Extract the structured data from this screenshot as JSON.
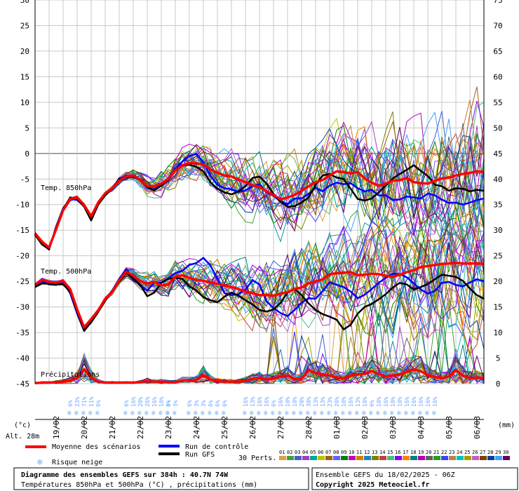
{
  "chart_data": {
    "type": "line",
    "title": "Diagramme des ensembles GEFS sur 384h : 40.7N 74W",
    "subtitle": "Températures 850hPa et 500hPa (°C) , précipitations (mm)",
    "run_info": "Ensemble GEFS du 18/02/2025 - 06Z",
    "copyright": "Copyright 2025 Meteociel.fr",
    "altitude": "Alt. 28m",
    "ylabel_left": "(°c)",
    "ylabel_right": "(mm)",
    "ylim_left": [
      -45,
      30
    ],
    "ylim_right": [
      0,
      75
    ],
    "left_ticks": [
      "30",
      "25",
      "20",
      "15",
      "10",
      "5",
      "0",
      "-5",
      "-10",
      "-15",
      "-20",
      "-25",
      "-30",
      "-35",
      "-40",
      "-45"
    ],
    "right_ticks": [
      "75",
      "70",
      "65",
      "60",
      "55",
      "50",
      "45",
      "40",
      "35",
      "30",
      "25",
      "20",
      "15",
      "10",
      "5",
      "0"
    ],
    "x_labels": [
      "19/02",
      "20/02",
      "21/02",
      "22/02",
      "23/02",
      "24/02",
      "25/02",
      "26/02",
      "27/02",
      "28/02",
      "01/03",
      "02/03",
      "03/03",
      "04/03",
      "05/03",
      "06/03"
    ],
    "section_labels": {
      "t850": "Temp. 850hPa",
      "t500": "Temp. 500hPa",
      "precip": "Précipitations"
    },
    "x_hours": [
      0,
      6,
      12,
      18,
      24,
      30,
      36,
      42,
      48,
      54,
      60,
      66,
      72,
      78,
      84,
      90,
      96,
      102,
      108,
      114,
      120,
      126,
      132,
      138,
      144,
      150,
      156,
      162,
      168,
      174,
      180,
      186,
      192,
      198,
      204,
      210,
      216,
      222,
      228,
      234,
      240,
      246,
      252,
      258,
      264,
      270,
      276,
      282,
      288,
      294,
      300,
      306,
      312,
      318,
      324,
      330,
      336,
      342,
      348,
      354,
      360,
      366,
      372,
      378,
      384
    ],
    "series": [
      {
        "name": "Moyenne des scénarios",
        "group": "t850",
        "color": "#ff0000",
        "values": [
          -15.6,
          -17.3,
          -18.4,
          -14.8,
          -11.1,
          -8.9,
          -8.6,
          -10.1,
          -12.3,
          -9.6,
          -7.8,
          -6.9,
          -5.3,
          -4.5,
          -4.3,
          -5.1,
          -6.4,
          -6.4,
          -5.9,
          -5.0,
          -3.3,
          -2.3,
          -1.9,
          -1.9,
          -2.2,
          -3.1,
          -3.8,
          -4.3,
          -4.5,
          -5.1,
          -5.6,
          -6.2,
          -6.5,
          -7.4,
          -8.1,
          -9.0,
          -8.6,
          -8.1,
          -7.3,
          -6.4,
          -5.6,
          -5.2,
          -4.3,
          -3.5,
          -3.6,
          -3.9,
          -3.6,
          -4.9,
          -5.7,
          -6.3,
          -5.9,
          -5.3,
          -5.2,
          -4.8,
          -5.6,
          -5.8,
          -5.9,
          -5.3,
          -4.9,
          -4.7,
          -4.3,
          -4.0,
          -3.8,
          -3.5,
          -3.6
        ]
      },
      {
        "name": "Run de contrôle",
        "group": "t850",
        "color": "#0000ff",
        "values": [
          -15.8,
          -17.7,
          -18.8,
          -14.3,
          -10.7,
          -8.9,
          -9.1,
          -10.3,
          -12.7,
          -9.9,
          -8.1,
          -6.8,
          -5.0,
          -4.3,
          -4.6,
          -5.2,
          -6.7,
          -7.1,
          -6.1,
          -5.2,
          -3.0,
          -1.6,
          -0.5,
          -0.1,
          -1.8,
          -4.4,
          -6.1,
          -6.8,
          -7.0,
          -7.5,
          -7.2,
          -6.4,
          -6.0,
          -7.6,
          -8.3,
          -9.4,
          -10.0,
          -8.8,
          -8.8,
          -7.9,
          -6.7,
          -7.4,
          -6.3,
          -5.7,
          -6.0,
          -5.8,
          -6.8,
          -7.4,
          -7.1,
          -8.2,
          -8.2,
          -9.1,
          -9.0,
          -8.4,
          -8.6,
          -8.8,
          -7.8,
          -8.2,
          -9.0,
          -9.7,
          -9.6,
          -10.0,
          -9.6,
          -9.1,
          -8.8
        ]
      },
      {
        "name": "Run GFS",
        "group": "t850",
        "color": "#000000",
        "values": [
          -15.9,
          -17.8,
          -18.7,
          -14.4,
          -10.9,
          -8.6,
          -8.9,
          -10.4,
          -13.1,
          -10.0,
          -8.2,
          -6.9,
          -4.9,
          -4.7,
          -4.4,
          -5.2,
          -6.6,
          -7.2,
          -6.3,
          -5.1,
          -3.4,
          -2.4,
          -2.2,
          -2.6,
          -3.5,
          -5.6,
          -6.9,
          -7.6,
          -8.0,
          -7.4,
          -6.4,
          -4.8,
          -4.5,
          -5.9,
          -7.9,
          -9.4,
          -10.4,
          -10.3,
          -9.6,
          -8.6,
          -6.1,
          -4.3,
          -4.0,
          -4.7,
          -5.0,
          -6.9,
          -8.9,
          -9.2,
          -8.8,
          -7.6,
          -6.3,
          -4.9,
          -4.0,
          -3.2,
          -2.3,
          -3.4,
          -4.4,
          -6.1,
          -6.4,
          -7.3,
          -6.8,
          -6.9,
          -7.4,
          -7.1,
          -7.3
        ]
      },
      {
        "name": "Moyenne des scénarios",
        "group": "t500",
        "color": "#ff0000",
        "values": [
          -25.7,
          -24.7,
          -25.1,
          -25.3,
          -24.9,
          -26.5,
          -30.5,
          -34.0,
          -32.4,
          -30.7,
          -28.4,
          -27.1,
          -24.8,
          -23.1,
          -23.9,
          -25.0,
          -25.4,
          -25.1,
          -25.8,
          -25.6,
          -24.1,
          -23.8,
          -24.3,
          -24.7,
          -24.9,
          -25.2,
          -25.5,
          -25.8,
          -26.1,
          -26.5,
          -27.0,
          -27.3,
          -27.7,
          -27.7,
          -27.8,
          -27.4,
          -27.1,
          -26.5,
          -26.2,
          -25.4,
          -25.0,
          -24.6,
          -23.6,
          -23.4,
          -23.3,
          -23.2,
          -23.8,
          -23.7,
          -23.5,
          -23.6,
          -23.9,
          -24.1,
          -23.7,
          -23.2,
          -22.8,
          -22.2,
          -22.0,
          -21.8,
          -21.6,
          -21.5,
          -21.4,
          -21.5,
          -21.5,
          -21.5,
          -21.6
        ]
      },
      {
        "name": "Run de contrôle",
        "group": "t500",
        "color": "#0000ff",
        "values": [
          -25.9,
          -25.0,
          -25.6,
          -25.7,
          -25.2,
          -27.3,
          -31.3,
          -34.7,
          -32.9,
          -30.8,
          -28.6,
          -26.8,
          -24.5,
          -22.6,
          -24.2,
          -25.9,
          -26.8,
          -25.2,
          -25.3,
          -24.4,
          -23.4,
          -22.9,
          -21.8,
          -21.4,
          -20.4,
          -21.9,
          -24.5,
          -27.3,
          -27.7,
          -27.5,
          -26.6,
          -24.8,
          -25.6,
          -28.9,
          -30.2,
          -31.2,
          -31.8,
          -30.6,
          -29.2,
          -28.3,
          -28.4,
          -26.9,
          -25.2,
          -25.7,
          -26.1,
          -27.0,
          -28.3,
          -27.6,
          -26.5,
          -25.3,
          -24.3,
          -23.5,
          -23.6,
          -24.2,
          -25.4,
          -26.6,
          -27.4,
          -26.9,
          -25.3,
          -25.1,
          -25.7,
          -26.0,
          -25.2,
          -24.6,
          -25.0
        ]
      },
      {
        "name": "Run GFS",
        "group": "t500",
        "color": "#000000",
        "values": [
          -26.1,
          -25.4,
          -25.5,
          -25.6,
          -25.6,
          -27.0,
          -31.0,
          -34.6,
          -33.0,
          -31.0,
          -28.8,
          -26.9,
          -25.1,
          -23.3,
          -24.5,
          -25.7,
          -27.9,
          -27.2,
          -25.3,
          -24.5,
          -24.3,
          -24.5,
          -26.0,
          -26.8,
          -28.1,
          -28.7,
          -29.1,
          -28.0,
          -27.2,
          -27.8,
          -28.7,
          -29.5,
          -30.6,
          -30.9,
          -30.5,
          -29.2,
          -27.2,
          -26.5,
          -27.7,
          -29.3,
          -30.6,
          -31.4,
          -31.9,
          -32.5,
          -34.4,
          -33.5,
          -31.3,
          -30.0,
          -29.4,
          -28.5,
          -27.5,
          -26.2,
          -25.3,
          -25.6,
          -26.6,
          -26.1,
          -25.5,
          -24.6,
          -23.7,
          -23.9,
          -24.1,
          -24.9,
          -26.4,
          -27.7,
          -28.4
        ]
      },
      {
        "name": "Moyenne des scénarios",
        "group": "precip",
        "color": "#ff0000",
        "values": [
          0.1,
          0.2,
          0.2,
          0.3,
          0.4,
          0.6,
          1.1,
          2.8,
          1.2,
          0.4,
          0.2,
          0.2,
          0.2,
          0.2,
          0.2,
          0.3,
          0.5,
          0.4,
          0.4,
          0.3,
          0.3,
          0.6,
          0.6,
          0.7,
          1.7,
          0.8,
          0.5,
          0.4,
          0.4,
          0.4,
          0.6,
          0.9,
          1.1,
          0.8,
          1.0,
          1.4,
          1.6,
          0.9,
          1.0,
          2.6,
          2.1,
          1.8,
          1.6,
          1.2,
          1.0,
          1.6,
          1.8,
          1.9,
          2.5,
          1.9,
          1.4,
          1.6,
          1.8,
          2.3,
          2.8,
          2.4,
          1.7,
          1.3,
          1.1,
          1.4,
          2.6,
          1.6,
          1.1,
          1.2,
          1.0
        ]
      }
    ],
    "snow_risk": [
      {
        "date": "20/02",
        "values": [
          "6%",
          "23%",
          "71%",
          "11%",
          "6%"
        ]
      },
      {
        "date": "22/02",
        "values": [
          "6%",
          "16%",
          "20%",
          "26%",
          "16%",
          "10%",
          "6%"
        ]
      },
      {
        "date": "24/02",
        "values": [
          "3%",
          "3%"
        ]
      },
      {
        "date": "25/02",
        "values": [
          "6%",
          "3%",
          "3%",
          "6%",
          "6%",
          "6%"
        ]
      },
      {
        "date": "27/02",
        "values": [
          "16%",
          "13%",
          "16%",
          "16%",
          "6%",
          "16%",
          "10%",
          "10%",
          "20%",
          "30%",
          "13%",
          "13%",
          "23%",
          "20%",
          "10%",
          "16%",
          "13%",
          "10%",
          "6%",
          "10%",
          "16%",
          "10%",
          "10%",
          "16%",
          "16%",
          "16%",
          "16%",
          "16%"
        ]
      }
    ]
  },
  "legend": {
    "mean": "Moyenne des scénarios",
    "control": "Run de contrôle",
    "gfs": "Run GFS",
    "snow": "Risque neige",
    "perts_label": "30 Perts.",
    "perts_numbers": [
      "01",
      "02",
      "03",
      "04",
      "05",
      "06",
      "07",
      "08",
      "09",
      "10",
      "11",
      "12",
      "13",
      "14",
      "15",
      "16",
      "17",
      "18",
      "19",
      "20",
      "21",
      "22",
      "23",
      "24",
      "25",
      "26",
      "27",
      "28",
      "29",
      "30"
    ],
    "colors": {
      "mean": "#ff0000",
      "control": "#0000ff",
      "gfs": "#000000",
      "snow": "#7fb2ff"
    }
  }
}
